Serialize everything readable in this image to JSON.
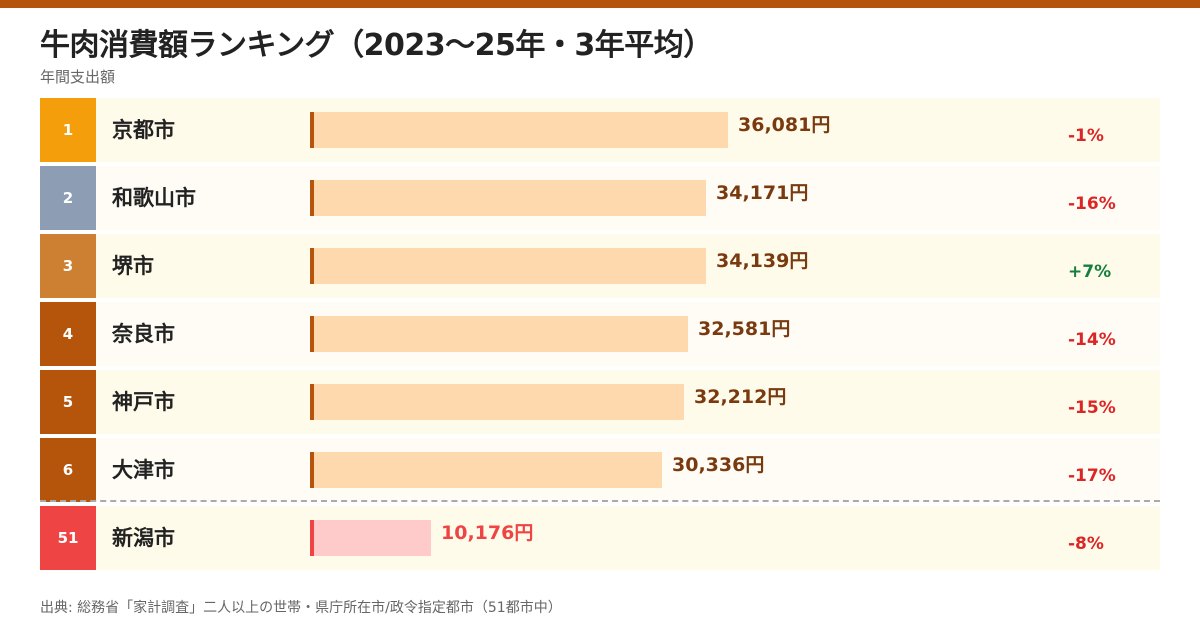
{
  "title": "牛肉消費額ランキング（2023〜25年・3年平均）",
  "subtitle": "年間支出額",
  "source": "出典: 総務省「家計調査」二人以上の世帯・県庁所在市/政令指定都市（51都市中）",
  "colors": {
    "accent": "#b5540b",
    "bar": "#fed9ad",
    "value_text": "#7a3a0f",
    "highlight": "#ef4444",
    "highlight_bar": "#fecaca",
    "negative": "#dc2626",
    "positive": "#15803d",
    "rank1": "#f59e0b",
    "rank2": "#8d9db4",
    "rank3": "#cd7f32",
    "rank_other": "#b5540b"
  },
  "chart_data": {
    "type": "bar",
    "orientation": "horizontal",
    "title": "牛肉消費額ランキング（2023〜25年・3年平均）",
    "subtitle": "年間支出額",
    "unit": "円",
    "categories": [
      "京都市",
      "和歌山市",
      "堺市",
      "奈良市",
      "神戸市",
      "大津市",
      "新潟市"
    ],
    "ranks": [
      "1",
      "2",
      "3",
      "4",
      "5",
      "6",
      "51"
    ],
    "values": [
      36081,
      34171,
      34139,
      32581,
      32212,
      30336,
      10176
    ],
    "value_labels": [
      "36,081円",
      "34,171円",
      "34,139円",
      "32,581円",
      "32,212円",
      "30,336円",
      "10,176円"
    ],
    "changes": [
      "-1%",
      "-16%",
      "+7%",
      "-14%",
      "-15%",
      "-17%",
      "-8%"
    ],
    "highlighted": "新潟市",
    "grid": false
  }
}
